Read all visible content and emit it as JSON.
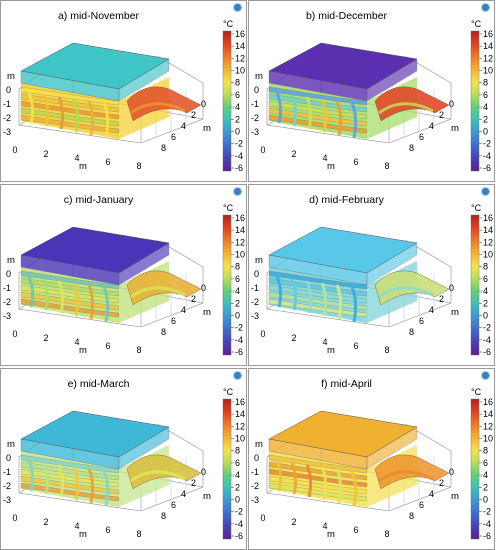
{
  "colorbar": {
    "unit": "°C",
    "ticks": [
      "16",
      "14",
      "12",
      "10",
      "8",
      "6",
      "4",
      "2",
      "0",
      "-2",
      "-4",
      "-6"
    ],
    "min": -6,
    "max": 16
  },
  "axes": {
    "axis_label": "m",
    "z_ticks": [
      "0",
      "-1",
      "-2",
      "-3"
    ],
    "x_ticks": [
      "0",
      "2",
      "4",
      "6",
      "8"
    ],
    "y_ticks": [
      "8",
      "6",
      "4",
      "2",
      "0"
    ]
  },
  "panels": [
    {
      "title": "a) mid-November",
      "top_color": "#3fc4c8",
      "wall_color": "#f5d23a",
      "band_colors": [
        "#f8e04a",
        "#f0c33a",
        "#e89a2e",
        "#b9d84a",
        "#e9b13a"
      ],
      "side_color": "#e4572e"
    },
    {
      "title": "b) mid-December",
      "top_color": "#5a2fb0",
      "wall_color": "#a6dd6a",
      "band_colors": [
        "#5aa0e6",
        "#6fd0c8",
        "#c6e35a",
        "#f2c23a",
        "#ee9a30"
      ],
      "side_color": "#e04a28"
    },
    {
      "title": "c) mid-January",
      "top_color": "#4a34b8",
      "wall_color": "#bfe27a",
      "band_colors": [
        "#6ec4b8",
        "#a9dd6a",
        "#d7e85a",
        "#f0c63a",
        "#e8a034"
      ],
      "side_color": "#e8b23a"
    },
    {
      "title": "d) mid-February",
      "top_color": "#58c8e8",
      "wall_color": "#7fd4d8",
      "band_colors": [
        "#38a8e0",
        "#60c8e0",
        "#8adbd0",
        "#b6e4a0",
        "#d8e88a"
      ],
      "side_color": "#c9e07a"
    },
    {
      "title": "e) mid-March",
      "top_color": "#3fb8d8",
      "wall_color": "#c6e790",
      "band_colors": [
        "#7fd6cc",
        "#b5e28a",
        "#e2e85a",
        "#f1c83e",
        "#ee9e36"
      ],
      "side_color": "#d8c040"
    },
    {
      "title": "f) mid-April",
      "top_color": "#f0b030",
      "wall_color": "#f6e05a",
      "band_colors": [
        "#f1c23a",
        "#eaa630",
        "#e68a2a",
        "#f6e04a",
        "#d9e85c"
      ],
      "side_color": "#ee9a32"
    }
  ]
}
